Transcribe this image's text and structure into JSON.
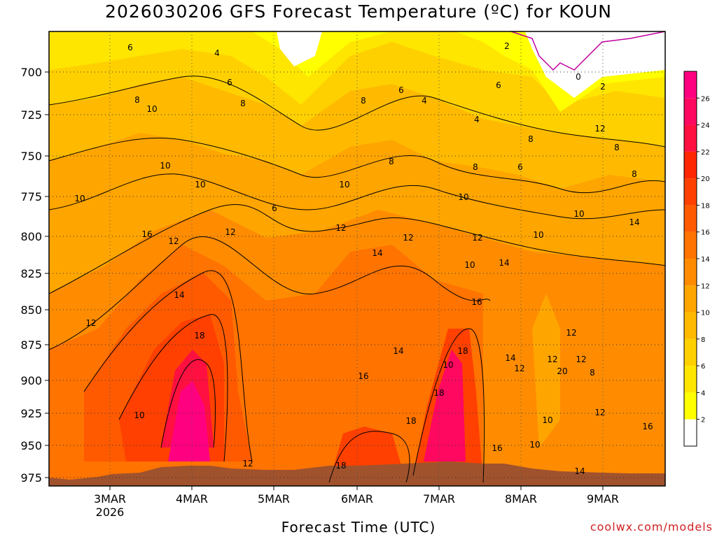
{
  "title": "2026030206 GFS Forecast Temperature (ºC) for KOUN",
  "xlabel": "Forecast Time (UTC)",
  "credit": "coolwx.com/models",
  "colors": {
    "ground": "#a0522d",
    "bands": [
      "#ffffff",
      "#ffff00",
      "#ffe600",
      "#ffd000",
      "#ffba00",
      "#ffa500",
      "#ff8c00",
      "#ff7300",
      "#ff5a00",
      "#ff4000",
      "#ff2600",
      "#ff1040",
      "#ff0860",
      "#ff0080",
      "#ff00a0"
    ]
  },
  "chart_data": {
    "type": "heatmap",
    "title": "2026030206 GFS Forecast Temperature (ºC) for KOUN",
    "xlabel": "Forecast Time (UTC)",
    "ylabel": "",
    "x_ticks": [
      {
        "label": "3MAR",
        "sub": "2026"
      },
      {
        "label": "4MAR",
        "sub": ""
      },
      {
        "label": "5MAR",
        "sub": ""
      },
      {
        "label": "6MAR",
        "sub": ""
      },
      {
        "label": "7MAR",
        "sub": ""
      },
      {
        "label": "8MAR",
        "sub": ""
      },
      {
        "label": "9MAR",
        "sub": ""
      }
    ],
    "y_ticks": [
      "700",
      "725",
      "750",
      "775",
      "800",
      "825",
      "850",
      "875",
      "900",
      "925",
      "950",
      "975"
    ],
    "colorbar_ticks": [
      "2",
      "4",
      "6",
      "8",
      "10",
      "12",
      "14",
      "16",
      "18",
      "20",
      "22",
      "24",
      "26"
    ],
    "contour_labels": [
      {
        "t": "6"
      },
      {
        "t": "4"
      },
      {
        "t": "2"
      },
      {
        "t": "0"
      },
      {
        "t": "2"
      },
      {
        "t": "8"
      },
      {
        "t": "10"
      },
      {
        "t": "6"
      },
      {
        "t": "8"
      },
      {
        "t": "6"
      },
      {
        "t": "8"
      },
      {
        "t": "4"
      },
      {
        "t": "6"
      },
      {
        "t": "4"
      },
      {
        "t": "12"
      },
      {
        "t": "10"
      },
      {
        "t": "10"
      },
      {
        "t": "10"
      },
      {
        "t": "6"
      },
      {
        "t": "8"
      },
      {
        "t": "8"
      },
      {
        "t": "8"
      },
      {
        "t": "8"
      },
      {
        "t": "6"
      },
      {
        "t": "10"
      },
      {
        "t": "10"
      },
      {
        "t": "8"
      },
      {
        "t": "10"
      },
      {
        "t": "14"
      },
      {
        "t": "16"
      },
      {
        "t": "12"
      },
      {
        "t": "12"
      },
      {
        "t": "12"
      },
      {
        "t": "12"
      },
      {
        "t": "12"
      },
      {
        "t": "10"
      },
      {
        "t": "14"
      },
      {
        "t": "14"
      },
      {
        "t": "10"
      },
      {
        "t": "12"
      },
      {
        "t": "14"
      },
      {
        "t": "16"
      },
      {
        "t": "18"
      },
      {
        "t": "14"
      },
      {
        "t": "12"
      },
      {
        "t": "16"
      },
      {
        "t": "18"
      },
      {
        "t": "14"
      },
      {
        "t": "12"
      },
      {
        "t": "12"
      },
      {
        "t": "10"
      },
      {
        "t": "20"
      },
      {
        "t": "8"
      },
      {
        "t": "10"
      },
      {
        "t": "18"
      },
      {
        "t": "18"
      },
      {
        "t": "16"
      },
      {
        "t": "10"
      },
      {
        "t": "12"
      },
      {
        "t": "16"
      },
      {
        "t": "10"
      },
      {
        "t": "12"
      },
      {
        "t": "12"
      },
      {
        "t": "18"
      },
      {
        "t": "14"
      }
    ]
  }
}
